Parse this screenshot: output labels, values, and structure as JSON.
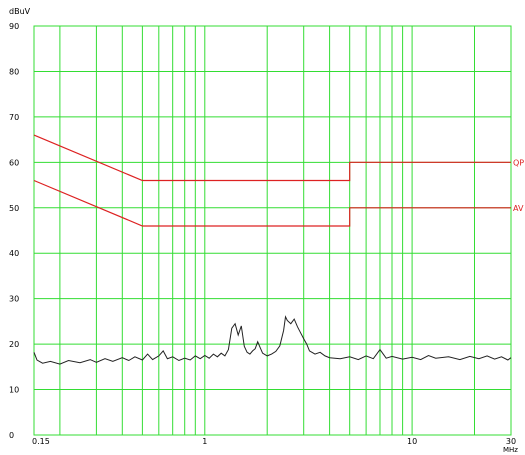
{
  "chart_data": {
    "type": "line",
    "title": "",
    "ylabel": "dBuV",
    "xlabel": "MHz",
    "x_scale": "log",
    "xlim": [
      0.15,
      30
    ],
    "ylim": [
      0,
      90
    ],
    "grid": true,
    "y_ticks": [
      "0",
      "10",
      "20",
      "30",
      "40",
      "50",
      "60",
      "70",
      "80",
      "90"
    ],
    "x_ticks": [
      {
        "value": 0.15,
        "label": "0.15"
      },
      {
        "value": 1,
        "label": "1"
      },
      {
        "value": 10,
        "label": "10"
      },
      {
        "value": 30,
        "label": "30"
      }
    ],
    "x_gridlines": [
      0.2,
      0.3,
      0.4,
      0.5,
      0.6,
      0.7,
      0.8,
      0.9,
      1,
      2,
      3,
      4,
      5,
      6,
      7,
      8,
      9,
      10,
      20
    ],
    "colors": {
      "grid": "#33dd33",
      "limits": "#dd2222",
      "trace": "#222222",
      "text": "#000000"
    },
    "limits": [
      {
        "name": "QP",
        "points": [
          [
            0.15,
            66
          ],
          [
            0.5,
            56
          ],
          [
            5,
            56
          ],
          [
            5,
            60
          ],
          [
            30,
            60
          ]
        ]
      },
      {
        "name": "AV",
        "points": [
          [
            0.15,
            56
          ],
          [
            0.5,
            46
          ],
          [
            5,
            46
          ],
          [
            5,
            50
          ],
          [
            30,
            50
          ]
        ]
      }
    ],
    "series": [
      {
        "points": [
          [
            0.15,
            18.2
          ],
          [
            0.155,
            16.5
          ],
          [
            0.165,
            15.8
          ],
          [
            0.18,
            16.2
          ],
          [
            0.2,
            15.6
          ],
          [
            0.22,
            16.4
          ],
          [
            0.25,
            15.9
          ],
          [
            0.28,
            16.6
          ],
          [
            0.3,
            16.0
          ],
          [
            0.33,
            16.8
          ],
          [
            0.36,
            16.2
          ],
          [
            0.4,
            17.0
          ],
          [
            0.43,
            16.4
          ],
          [
            0.46,
            17.2
          ],
          [
            0.5,
            16.5
          ],
          [
            0.53,
            17.8
          ],
          [
            0.56,
            16.6
          ],
          [
            0.6,
            17.4
          ],
          [
            0.63,
            18.5
          ],
          [
            0.66,
            16.8
          ],
          [
            0.7,
            17.2
          ],
          [
            0.75,
            16.4
          ],
          [
            0.8,
            16.9
          ],
          [
            0.85,
            16.5
          ],
          [
            0.9,
            17.4
          ],
          [
            0.95,
            16.8
          ],
          [
            1.0,
            17.5
          ],
          [
            1.05,
            16.9
          ],
          [
            1.1,
            17.8
          ],
          [
            1.15,
            17.2
          ],
          [
            1.2,
            18.0
          ],
          [
            1.25,
            17.4
          ],
          [
            1.3,
            18.8
          ],
          [
            1.35,
            23.5
          ],
          [
            1.4,
            24.5
          ],
          [
            1.45,
            22.0
          ],
          [
            1.5,
            24.0
          ],
          [
            1.55,
            19.5
          ],
          [
            1.6,
            18.2
          ],
          [
            1.65,
            17.8
          ],
          [
            1.7,
            18.5
          ],
          [
            1.75,
            19.0
          ],
          [
            1.8,
            20.5
          ],
          [
            1.85,
            19.2
          ],
          [
            1.9,
            18.0
          ],
          [
            2.0,
            17.4
          ],
          [
            2.1,
            17.8
          ],
          [
            2.2,
            18.4
          ],
          [
            2.3,
            19.6
          ],
          [
            2.4,
            23.0
          ],
          [
            2.45,
            26.0
          ],
          [
            2.5,
            25.2
          ],
          [
            2.6,
            24.5
          ],
          [
            2.7,
            25.5
          ],
          [
            2.8,
            23.8
          ],
          [
            2.9,
            22.5
          ],
          [
            3.0,
            21.2
          ],
          [
            3.1,
            20.0
          ],
          [
            3.2,
            18.5
          ],
          [
            3.4,
            17.8
          ],
          [
            3.6,
            18.2
          ],
          [
            3.8,
            17.4
          ],
          [
            4.0,
            17.0
          ],
          [
            4.5,
            16.8
          ],
          [
            5.0,
            17.2
          ],
          [
            5.5,
            16.6
          ],
          [
            6.0,
            17.4
          ],
          [
            6.5,
            16.8
          ],
          [
            7.0,
            18.8
          ],
          [
            7.5,
            16.9
          ],
          [
            8.0,
            17.3
          ],
          [
            9.0,
            16.7
          ],
          [
            10,
            17.1
          ],
          [
            11,
            16.6
          ],
          [
            12,
            17.5
          ],
          [
            13,
            16.9
          ],
          [
            15,
            17.2
          ],
          [
            17,
            16.6
          ],
          [
            19,
            17.3
          ],
          [
            21,
            16.8
          ],
          [
            23,
            17.4
          ],
          [
            25,
            16.7
          ],
          [
            27,
            17.2
          ],
          [
            29,
            16.5
          ],
          [
            30,
            17.0
          ]
        ]
      }
    ]
  }
}
